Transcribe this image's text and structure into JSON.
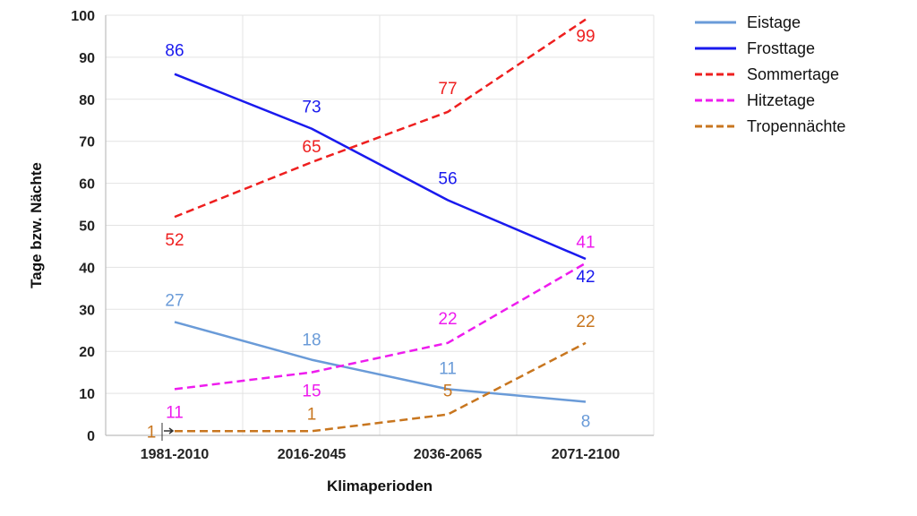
{
  "chart_data": {
    "type": "line",
    "title": "",
    "xlabel": "Klimaperioden",
    "ylabel": "Tage bzw. Nächte",
    "categories": [
      "1981-2010",
      "2016-2045",
      "2036-2065",
      "2071-2100"
    ],
    "ylim": [
      0,
      100
    ],
    "yticks": [
      0,
      10,
      20,
      30,
      40,
      50,
      60,
      70,
      80,
      90,
      100
    ],
    "grid": true,
    "legend_position": "top-right",
    "series": [
      {
        "name": "Eistage",
        "values": [
          27,
          18,
          11,
          8
        ],
        "color": "#6a9bd8",
        "dashed": false
      },
      {
        "name": "Frosttage",
        "values": [
          86,
          73,
          56,
          42
        ],
        "color": "#1a1aee",
        "dashed": false
      },
      {
        "name": "Sommertage",
        "values": [
          52,
          65,
          77,
          99
        ],
        "color": "#ee1f1f",
        "dashed": true
      },
      {
        "name": "Hitzetage",
        "values": [
          11,
          15,
          22,
          41
        ],
        "color": "#ee1cee",
        "dashed": true
      },
      {
        "name": "Tropennächte",
        "values": [
          1,
          1,
          5,
          22
        ],
        "color": "#c8761f",
        "dashed": true
      }
    ]
  }
}
